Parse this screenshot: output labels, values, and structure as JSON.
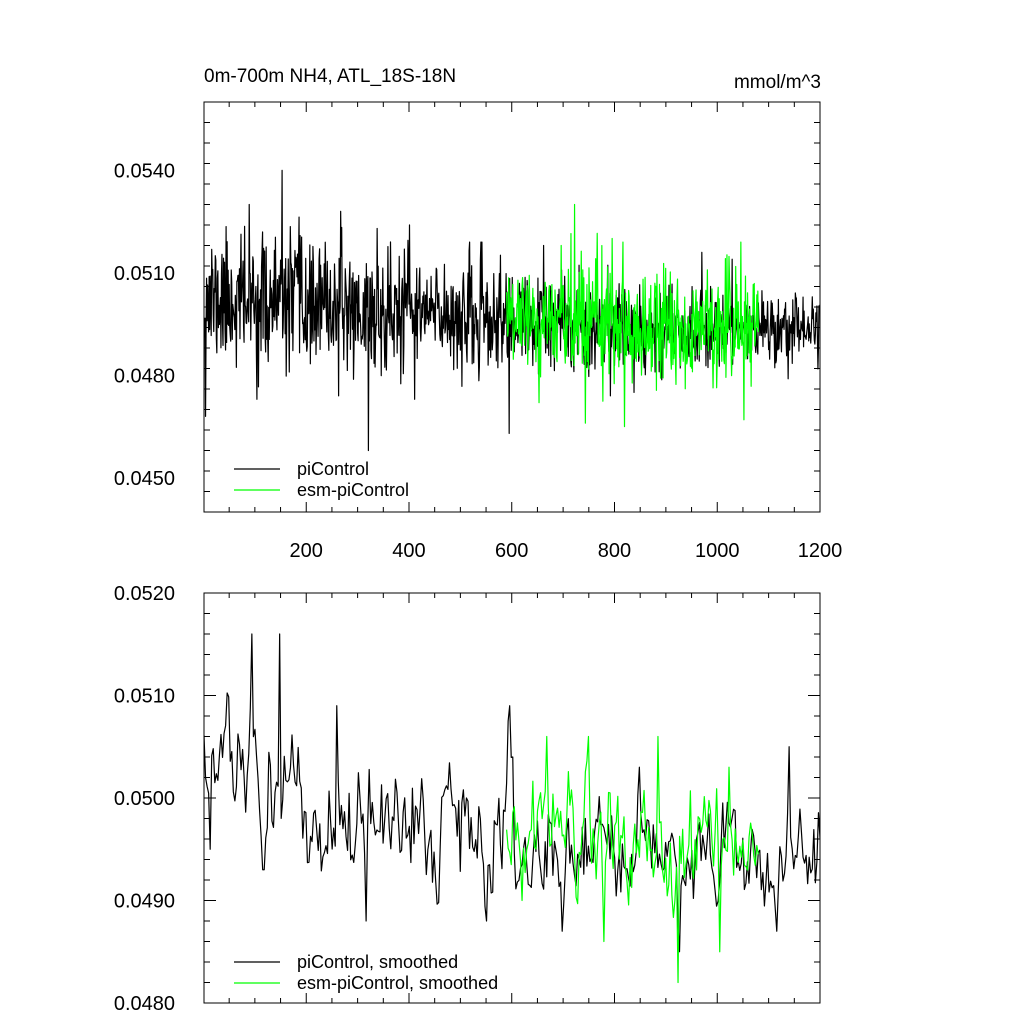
{
  "figure": {
    "title_left": "0m-700m NH4, ATL_18S-18N",
    "title_right": "mmol/m^3"
  },
  "colors": {
    "piControl": "#000000",
    "esm-piControl": "#00ff00"
  },
  "chart_data": [
    {
      "type": "line",
      "panel": "top",
      "title": "0m-700m NH4, ATL_18S-18N",
      "units": "mmol/m^3",
      "xlim": [
        1,
        1200
      ],
      "ylim": [
        0.044,
        0.056
      ],
      "x_ticks": [
        200,
        400,
        600,
        800,
        1000,
        1200
      ],
      "x_tick_labels": [
        "200",
        "400",
        "600",
        "800",
        "1000",
        "1200"
      ],
      "y_ticks": [
        0.045,
        0.048,
        0.051,
        0.054
      ],
      "y_tick_labels": [
        "0.0450",
        "0.0480",
        "0.0510",
        "0.0540"
      ],
      "legend": [
        "piControl",
        "esm-piControl"
      ],
      "legend_position": "bottom-left",
      "series": [
        {
          "name": "piControl",
          "color": "#000000",
          "x_start": 1,
          "x_end": 1200,
          "points": 1200,
          "segments": [
            {
              "x_from": 1,
              "x_to": 100,
              "mean": 0.0502,
              "min": 0.0468,
              "max": 0.053
            },
            {
              "x_from": 100,
              "x_to": 200,
              "mean": 0.0501,
              "min": 0.0473,
              "max": 0.054
            },
            {
              "x_from": 200,
              "x_to": 300,
              "mean": 0.05,
              "min": 0.0474,
              "max": 0.0528
            },
            {
              "x_from": 300,
              "x_to": 400,
              "mean": 0.0498,
              "min": 0.0458,
              "max": 0.0523
            },
            {
              "x_from": 400,
              "x_to": 500,
              "mean": 0.0498,
              "min": 0.0473,
              "max": 0.0524
            },
            {
              "x_from": 500,
              "x_to": 600,
              "mean": 0.0496,
              "min": 0.0463,
              "max": 0.0519
            },
            {
              "x_from": 600,
              "x_to": 800,
              "mean": 0.0495,
              "min": 0.0474,
              "max": 0.0518
            },
            {
              "x_from": 800,
              "x_to": 1000,
              "mean": 0.0494,
              "min": 0.0475,
              "max": 0.0516
            },
            {
              "x_from": 1000,
              "x_to": 1200,
              "mean": 0.0494,
              "min": 0.0479,
              "max": 0.0514
            }
          ]
        },
        {
          "name": "esm-piControl",
          "color": "#00ff00",
          "x_start": 590,
          "x_end": 1080,
          "points": 490,
          "segments": [
            {
              "x_from": 590,
              "x_to": 700,
              "mean": 0.0497,
              "min": 0.0472,
              "max": 0.0518
            },
            {
              "x_from": 700,
              "x_to": 800,
              "mean": 0.0496,
              "min": 0.0466,
              "max": 0.053
            },
            {
              "x_from": 800,
              "x_to": 1000,
              "mean": 0.0495,
              "min": 0.0465,
              "max": 0.0519
            },
            {
              "x_from": 1000,
              "x_to": 1080,
              "mean": 0.0494,
              "min": 0.0467,
              "max": 0.0519
            }
          ]
        }
      ]
    },
    {
      "type": "line",
      "panel": "bottom",
      "xlim": [
        1,
        1200
      ],
      "ylim": [
        0.048,
        0.052
      ],
      "x_ticks": [
        200,
        400,
        600,
        800,
        1000,
        1200
      ],
      "y_ticks": [
        0.048,
        0.049,
        0.05,
        0.051,
        0.052
      ],
      "y_tick_labels": [
        "0.0480",
        "0.0490",
        "0.0500",
        "0.0510",
        "0.0520"
      ],
      "legend": [
        "piControl, smoothed",
        "esm-piControl, smoothed"
      ],
      "legend_position": "bottom-left",
      "series": [
        {
          "name": "piControl, smoothed",
          "color": "#000000",
          "x_start": 1,
          "x_end": 1200,
          "points": 400,
          "segments": [
            {
              "x_from": 1,
              "x_to": 100,
              "mean": 0.0504,
              "min": 0.0495,
              "max": 0.0516
            },
            {
              "x_from": 100,
              "x_to": 200,
              "mean": 0.05,
              "min": 0.0493,
              "max": 0.0516
            },
            {
              "x_from": 200,
              "x_to": 400,
              "mean": 0.0498,
              "min": 0.0488,
              "max": 0.0509
            },
            {
              "x_from": 400,
              "x_to": 600,
              "mean": 0.0497,
              "min": 0.0488,
              "max": 0.0509
            },
            {
              "x_from": 600,
              "x_to": 800,
              "mean": 0.0495,
              "min": 0.0487,
              "max": 0.0504
            },
            {
              "x_from": 800,
              "x_to": 1000,
              "mean": 0.0494,
              "min": 0.0485,
              "max": 0.0503
            },
            {
              "x_from": 1000,
              "x_to": 1200,
              "mean": 0.0494,
              "min": 0.0487,
              "max": 0.0505
            }
          ]
        },
        {
          "name": "esm-piControl, smoothed",
          "color": "#00ff00",
          "x_start": 590,
          "x_end": 1080,
          "points": 164,
          "segments": [
            {
              "x_from": 590,
              "x_to": 700,
              "mean": 0.0497,
              "min": 0.049,
              "max": 0.0506
            },
            {
              "x_from": 700,
              "x_to": 800,
              "mean": 0.0496,
              "min": 0.0486,
              "max": 0.0506
            },
            {
              "x_from": 800,
              "x_to": 1000,
              "mean": 0.0495,
              "min": 0.0482,
              "max": 0.0506
            },
            {
              "x_from": 1000,
              "x_to": 1080,
              "mean": 0.0494,
              "min": 0.0485,
              "max": 0.0503
            }
          ]
        }
      ]
    }
  ]
}
